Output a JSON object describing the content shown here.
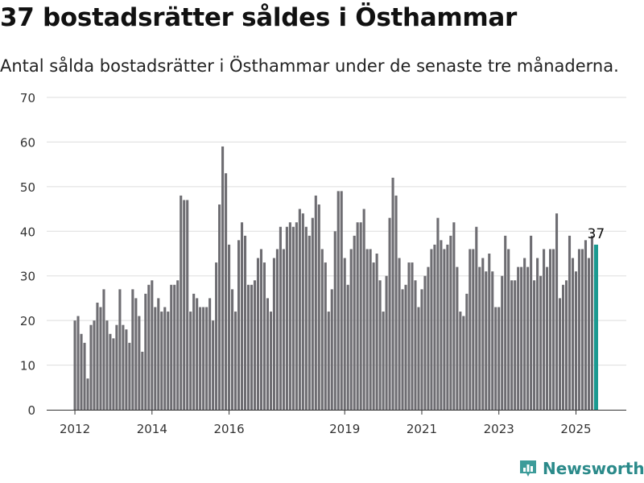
{
  "page": {
    "title": "37 bostadsrätter såldes i Östhammar",
    "subtitle": "Antal sålda bostadsrätter i Östhammar under de senaste tre månaderna.",
    "brand": "Newsworthy"
  },
  "colors": {
    "bar": "#6e6d72",
    "highlight": "#1b9a91",
    "grid": "#dddddd",
    "brand": "#2b8a8a"
  },
  "chart_data": {
    "type": "bar",
    "title": "37 bostadsrätter såldes i Östhammar",
    "subtitle": "Antal sålda bostadsrätter i Östhammar under de senaste tre månaderna.",
    "xlabel": "",
    "ylabel": "",
    "ylim": [
      0,
      70
    ],
    "yticks": [
      0,
      10,
      20,
      30,
      40,
      50,
      60,
      70
    ],
    "xticks": [
      {
        "label": "2012",
        "index": 0
      },
      {
        "label": "2014",
        "index": 24
      },
      {
        "label": "2016",
        "index": 48
      },
      {
        "label": "2019",
        "index": 84
      },
      {
        "label": "2021",
        "index": 108
      },
      {
        "label": "2023",
        "index": 132
      },
      {
        "label": "2025",
        "index": 156
      }
    ],
    "grid": true,
    "start_month": "2012-01",
    "values": [
      20,
      21,
      17,
      15,
      7,
      19,
      20,
      24,
      23,
      27,
      20,
      17,
      16,
      19,
      27,
      19,
      18,
      15,
      27,
      25,
      21,
      13,
      26,
      28,
      29,
      23,
      25,
      22,
      23,
      22,
      28,
      28,
      29,
      48,
      47,
      47,
      22,
      26,
      25,
      23,
      23,
      23,
      25,
      20,
      33,
      46,
      59,
      53,
      37,
      27,
      22,
      38,
      42,
      39,
      28,
      28,
      29,
      34,
      36,
      33,
      25,
      22,
      34,
      36,
      41,
      36,
      41,
      42,
      41,
      42,
      45,
      44,
      41,
      39,
      43,
      48,
      46,
      36,
      33,
      22,
      27,
      40,
      49,
      49,
      34,
      28,
      36,
      39,
      42,
      42,
      45,
      36,
      36,
      33,
      35,
      29,
      22,
      30,
      43,
      52,
      48,
      34,
      27,
      28,
      33,
      33,
      29,
      23,
      27,
      30,
      32,
      36,
      37,
      43,
      38,
      36,
      37,
      39,
      42,
      32,
      22,
      21,
      26,
      36,
      36,
      41,
      32,
      34,
      31,
      35,
      31,
      23,
      23,
      30,
      39,
      36,
      29,
      29,
      32,
      32,
      34,
      32,
      39,
      29,
      34,
      30,
      36,
      32,
      36,
      36,
      44,
      25,
      28,
      29,
      39,
      34,
      31,
      36,
      36,
      38,
      34,
      39,
      37
    ],
    "highlight_last": 1,
    "annotations": [
      {
        "index": 162,
        "text": "37"
      }
    ]
  }
}
